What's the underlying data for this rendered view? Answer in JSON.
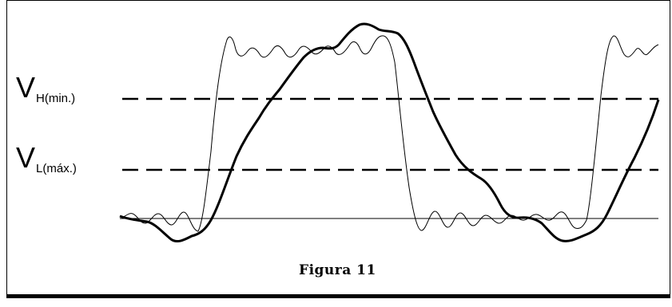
{
  "figure": {
    "caption": "Figura 11",
    "thresholds": {
      "high": {
        "symbol": "V",
        "subscript": "H(min.)"
      },
      "low": {
        "symbol": "V",
        "subscript": "L(máx.)"
      }
    }
  }
}
